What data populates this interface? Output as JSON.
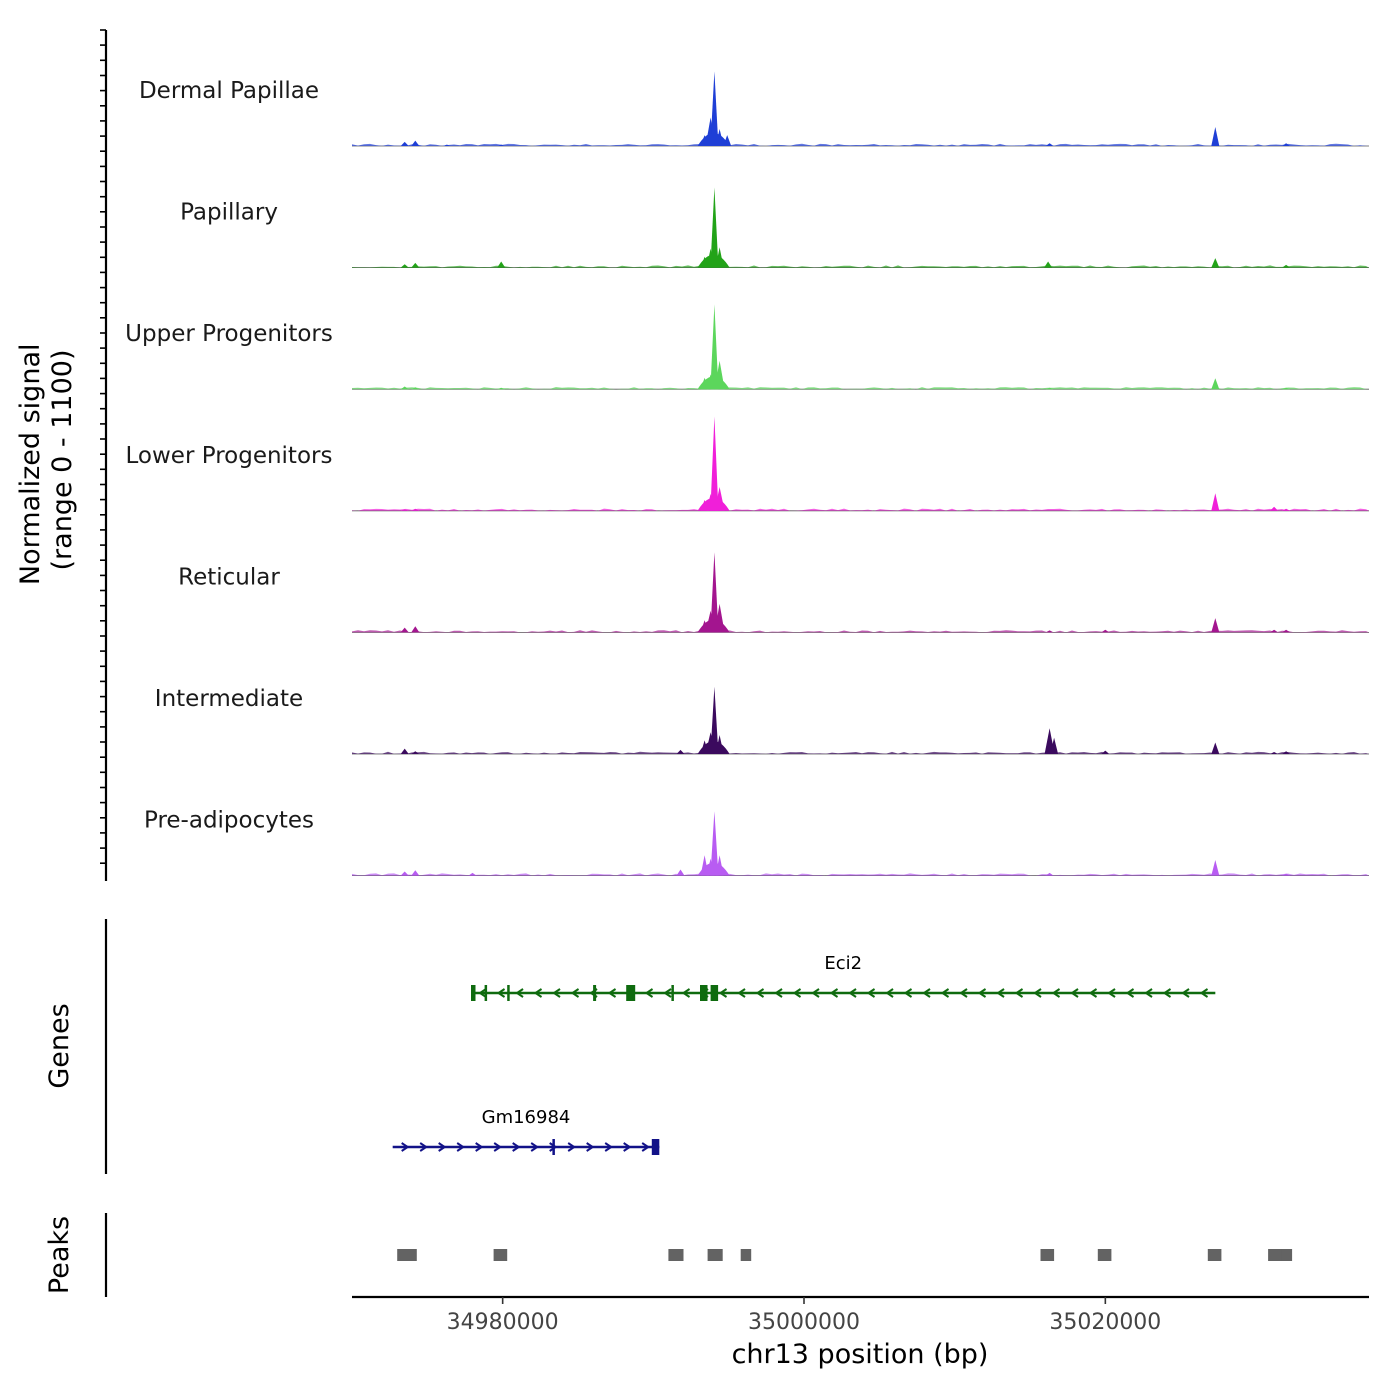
{
  "chart_data": {
    "type": "area",
    "title": "",
    "ylabel": "Normalized signal\n(range 0 - 1100)",
    "ylabel_lines": [
      "Normalized signal",
      "(range 0 - 1100)"
    ],
    "xlabel": "chr13 position (bp)",
    "xlim": [
      34970000,
      35037500
    ],
    "ylim": [
      0,
      1100
    ],
    "x_ticks": [
      34980000,
      35000000,
      35020000
    ],
    "x_tick_labels": [
      "34980000",
      "35000000",
      "35020000"
    ],
    "peak_center": 34994000,
    "tracks": [
      {
        "name": "Dermal Papillae",
        "color": "#1f3fd6",
        "peaks": [
          {
            "x": 34973500,
            "y": 60
          },
          {
            "x": 34974200,
            "y": 80
          },
          {
            "x": 34976300,
            "y": 20
          },
          {
            "x": 34979900,
            "y": 20
          },
          {
            "x": 34993400,
            "y": 160
          },
          {
            "x": 34993800,
            "y": 420
          },
          {
            "x": 34994050,
            "y": 1100
          },
          {
            "x": 34994400,
            "y": 250
          },
          {
            "x": 34994900,
            "y": 160
          },
          {
            "x": 35016300,
            "y": 40
          },
          {
            "x": 35027300,
            "y": 280
          },
          {
            "x": 35032000,
            "y": 40
          }
        ]
      },
      {
        "name": "Papillary",
        "color": "#22a318",
        "peaks": [
          {
            "x": 34973500,
            "y": 50
          },
          {
            "x": 34974200,
            "y": 70
          },
          {
            "x": 34979900,
            "y": 90
          },
          {
            "x": 34993400,
            "y": 160
          },
          {
            "x": 34993800,
            "y": 280
          },
          {
            "x": 34994050,
            "y": 1180
          },
          {
            "x": 34994400,
            "y": 300
          },
          {
            "x": 35016200,
            "y": 90
          },
          {
            "x": 35027300,
            "y": 140
          },
          {
            "x": 35032000,
            "y": 40
          }
        ]
      },
      {
        "name": "Upper Progenitors",
        "color": "#5cd65c",
        "peaks": [
          {
            "x": 34973500,
            "y": 40
          },
          {
            "x": 34974200,
            "y": 30
          },
          {
            "x": 34979900,
            "y": 20
          },
          {
            "x": 34993400,
            "y": 170
          },
          {
            "x": 34993800,
            "y": 220
          },
          {
            "x": 34994050,
            "y": 1250
          },
          {
            "x": 34994400,
            "y": 420
          },
          {
            "x": 35016300,
            "y": 20
          },
          {
            "x": 35027300,
            "y": 160
          },
          {
            "x": 35032000,
            "y": 20
          }
        ]
      },
      {
        "name": "Lower Progenitors",
        "color": "#f01fd9",
        "peaks": [
          {
            "x": 34973500,
            "y": 20
          },
          {
            "x": 34974200,
            "y": 30
          },
          {
            "x": 34993400,
            "y": 160
          },
          {
            "x": 34993800,
            "y": 250
          },
          {
            "x": 34994050,
            "y": 1390
          },
          {
            "x": 34994400,
            "y": 350
          },
          {
            "x": 35027300,
            "y": 260
          },
          {
            "x": 35031200,
            "y": 60
          },
          {
            "x": 35032000,
            "y": 30
          }
        ]
      },
      {
        "name": "Reticular",
        "color": "#a3158f",
        "peaks": [
          {
            "x": 34973500,
            "y": 70
          },
          {
            "x": 34974200,
            "y": 90
          },
          {
            "x": 34993400,
            "y": 180
          },
          {
            "x": 34993800,
            "y": 320
          },
          {
            "x": 34994050,
            "y": 1180
          },
          {
            "x": 34994400,
            "y": 420
          },
          {
            "x": 35016300,
            "y": 30
          },
          {
            "x": 35020000,
            "y": 40
          },
          {
            "x": 35027300,
            "y": 210
          },
          {
            "x": 35031200,
            "y": 40
          },
          {
            "x": 35032000,
            "y": 40
          }
        ]
      },
      {
        "name": "Intermediate",
        "color": "#3b0a5e",
        "peaks": [
          {
            "x": 34973500,
            "y": 80
          },
          {
            "x": 34974200,
            "y": 40
          },
          {
            "x": 34991800,
            "y": 60
          },
          {
            "x": 34993400,
            "y": 200
          },
          {
            "x": 34993800,
            "y": 320
          },
          {
            "x": 34994050,
            "y": 990
          },
          {
            "x": 34994400,
            "y": 280
          },
          {
            "x": 35016300,
            "y": 380
          },
          {
            "x": 35016600,
            "y": 240
          },
          {
            "x": 35020000,
            "y": 50
          },
          {
            "x": 35027300,
            "y": 170
          },
          {
            "x": 35031200,
            "y": 30
          },
          {
            "x": 35032000,
            "y": 40
          }
        ]
      },
      {
        "name": "Pre-adipocytes",
        "color": "#b85cf2",
        "peaks": [
          {
            "x": 34973500,
            "y": 60
          },
          {
            "x": 34974200,
            "y": 80
          },
          {
            "x": 34978000,
            "y": 40
          },
          {
            "x": 34991800,
            "y": 90
          },
          {
            "x": 34993400,
            "y": 300
          },
          {
            "x": 34993800,
            "y": 250
          },
          {
            "x": 34994050,
            "y": 950
          },
          {
            "x": 34994400,
            "y": 300
          },
          {
            "x": 35016300,
            "y": 40
          },
          {
            "x": 35027300,
            "y": 230
          },
          {
            "x": 35032000,
            "y": 30
          }
        ]
      }
    ],
    "genes_label": "Genes",
    "genes": [
      {
        "name": "Eci2",
        "strand": "-",
        "color": "#0f6b0f",
        "start": 34977900,
        "end": 35027300,
        "exons": [
          [
            34977900,
            34978200
          ],
          [
            34978800,
            34978900
          ],
          [
            34980300,
            34980400
          ],
          [
            34986000,
            34986200
          ],
          [
            34988200,
            34988800
          ],
          [
            34991200,
            34991300
          ],
          [
            34993100,
            34993600
          ],
          [
            34993800,
            34994300
          ]
        ]
      },
      {
        "name": "Gm16984",
        "strand": "+",
        "color": "#121288",
        "start": 34972700,
        "end": 34990400,
        "exons": [
          [
            34983300,
            34983400
          ],
          [
            34989900,
            34990400
          ]
        ]
      }
    ],
    "peaks_label": "Peaks",
    "peak_color": "#636363",
    "peak_regions": [
      [
        34973000,
        34974300
      ],
      [
        34979400,
        34980300
      ],
      [
        34991000,
        34992000
      ],
      [
        34993600,
        34994600
      ],
      [
        34995800,
        34996500
      ],
      [
        35015700,
        35016600
      ],
      [
        35019500,
        35020400
      ],
      [
        35026800,
        35027700
      ],
      [
        35030800,
        35031900
      ],
      [
        35031700,
        35032400
      ]
    ]
  }
}
